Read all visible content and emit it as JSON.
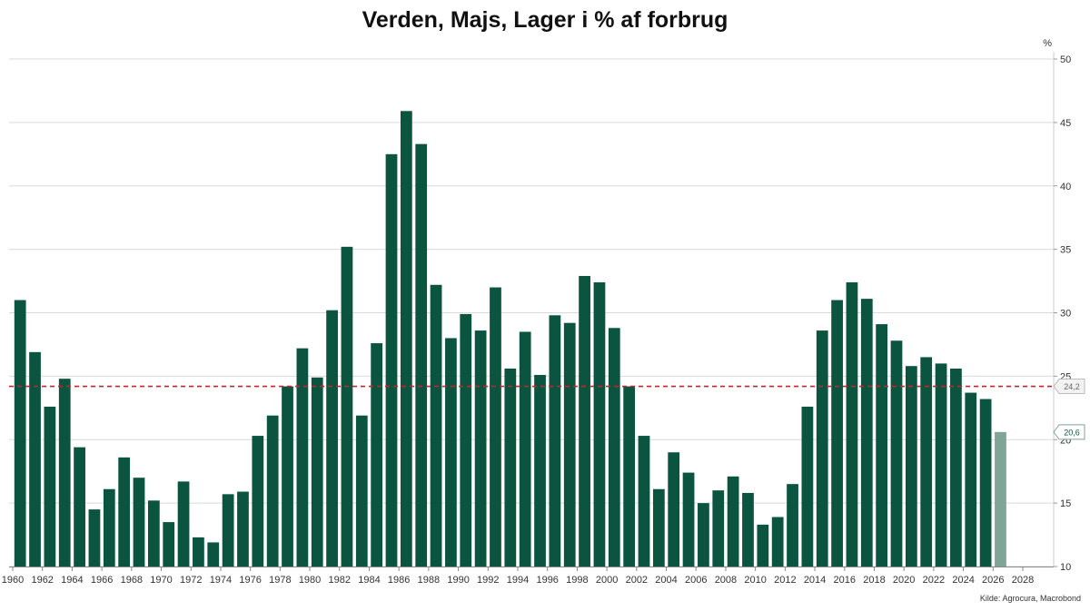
{
  "chart_data": {
    "type": "bar",
    "title": "Verden, Majs, Lager i % af forbrug",
    "ylabel": "%",
    "xlabel": "",
    "ylim": [
      10,
      50
    ],
    "y_ticks": [
      10,
      15,
      20,
      25,
      30,
      35,
      40,
      45,
      50
    ],
    "xlim": [
      1960,
      2028
    ],
    "x_ticks": [
      "1960",
      "1962",
      "1964",
      "1966",
      "1968",
      "1970",
      "1972",
      "1974",
      "1976",
      "1978",
      "1980",
      "1982",
      "1984",
      "1986",
      "1988",
      "1990",
      "1992",
      "1994",
      "1996",
      "1998",
      "2000",
      "2002",
      "2004",
      "2006",
      "2008",
      "2010",
      "2012",
      "2014",
      "2016",
      "2018",
      "2020",
      "2022",
      "2024",
      "2026",
      "2028"
    ],
    "grid": true,
    "y_axis_side": "right",
    "colors": {
      "bar": "#0b5540",
      "forecast_bar": "#7fa597",
      "reference_line": "#c0262d"
    },
    "series": [
      {
        "years": [
          1960,
          1961,
          1962,
          1963,
          1964,
          1965,
          1966,
          1967,
          1968,
          1969,
          1970,
          1971,
          1972,
          1973,
          1974,
          1975,
          1976,
          1977,
          1978,
          1979,
          1980,
          1981,
          1982,
          1983,
          1984,
          1985,
          1986,
          1987,
          1988,
          1989,
          1990,
          1991,
          1992,
          1993,
          1994,
          1995,
          1996,
          1997,
          1998,
          1999,
          2000,
          2001,
          2002,
          2003,
          2004,
          2005,
          2006,
          2007,
          2008,
          2009,
          2010,
          2011,
          2012,
          2013,
          2014,
          2015,
          2016,
          2017,
          2018,
          2019,
          2020,
          2021,
          2022,
          2023,
          2024,
          2025,
          2026
        ],
        "values": [
          31.0,
          26.9,
          22.6,
          24.8,
          19.4,
          14.5,
          16.1,
          18.6,
          17.0,
          15.2,
          13.5,
          16.7,
          12.3,
          11.9,
          15.7,
          15.9,
          20.3,
          21.9,
          24.2,
          27.2,
          24.9,
          30.2,
          35.2,
          21.9,
          27.6,
          42.5,
          45.9,
          43.3,
          32.2,
          28.0,
          29.9,
          28.6,
          32.0,
          25.6,
          28.5,
          25.1,
          29.8,
          29.2,
          32.9,
          32.4,
          28.8,
          24.2,
          20.3,
          16.1,
          19.0,
          17.4,
          15.0,
          16.0,
          17.1,
          15.8,
          13.3,
          13.9,
          16.5,
          22.6,
          28.6,
          31.0,
          32.4,
          31.1,
          29.1,
          27.8,
          25.8,
          26.5,
          26.0,
          25.6,
          23.7,
          23.2,
          20.6
        ],
        "forecast_years": [
          2026
        ]
      }
    ],
    "reference_line": {
      "value": 24.2,
      "label": "24,2"
    },
    "last_value_label": "20,6"
  },
  "source": "Kilde: Agrocura, Macrobond"
}
